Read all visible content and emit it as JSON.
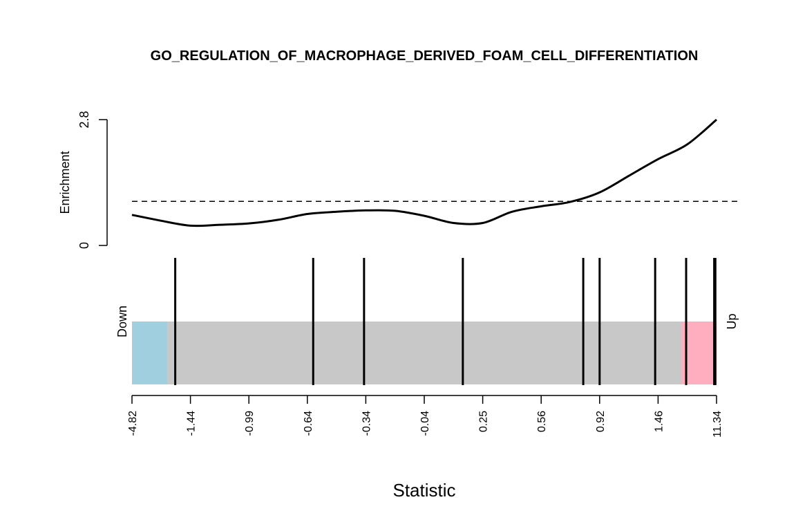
{
  "chart_data": {
    "type": "barcode",
    "title": "GO_REGULATION_OF_MACROPHAGE_DERIVED_FOAM_CELL_DIFFERENTIATION",
    "xlabel": "Statistic",
    "enrichment": {
      "ylabel": "Enrichment",
      "ylim": [
        0,
        2.8
      ],
      "yticks": [
        "0",
        "2.8"
      ],
      "baseline": 0.98,
      "x": [
        0.0,
        0.05,
        0.1,
        0.15,
        0.2,
        0.25,
        0.3,
        0.35,
        0.4,
        0.45,
        0.5,
        0.55,
        0.6,
        0.65,
        0.7,
        0.75,
        0.8,
        0.85,
        0.9,
        0.95,
        1.0
      ],
      "y": [
        0.68,
        0.55,
        0.44,
        0.46,
        0.49,
        0.57,
        0.7,
        0.75,
        0.78,
        0.77,
        0.66,
        0.5,
        0.5,
        0.75,
        0.87,
        0.97,
        1.18,
        1.55,
        1.92,
        2.25,
        2.8
      ]
    },
    "barcode": {
      "down_label": "Down",
      "up_label": "Up",
      "down_region": [
        0.0,
        0.06
      ],
      "up_region": [
        0.94,
        1.0
      ],
      "colors": {
        "down": "#a0cfe0",
        "middle": "#c8c8c8",
        "up": "#ffaec0",
        "line": "#000000"
      },
      "gene_positions": [
        0.074,
        0.31,
        0.397,
        0.566,
        0.772,
        0.8,
        0.895,
        0.948,
        0.996,
        0.998
      ]
    },
    "x_ticks": [
      "-4.82",
      "-1.44",
      "-0.99",
      "-0.64",
      "-0.34",
      "-0.04",
      "0.25",
      "0.56",
      "0.92",
      "1.46",
      "11.34"
    ]
  }
}
